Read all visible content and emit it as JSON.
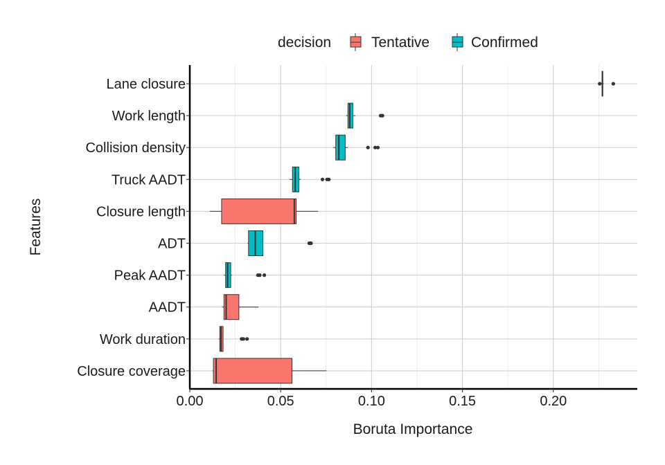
{
  "chart_data": {
    "type": "boxplot",
    "orientation": "horizontal",
    "xlabel": "Boruta Importance",
    "ylabel": "Features",
    "xlim": [
      0.0,
      0.245
    ],
    "x_ticks": [
      0.0,
      0.05,
      0.1,
      0.15,
      0.2
    ],
    "x_tick_labels": [
      "0.00",
      "0.05",
      "0.10",
      "0.15",
      "0.20"
    ],
    "grid": true,
    "legend": {
      "title": "decision",
      "position": "top",
      "entries": [
        {
          "label": "Tentative",
          "color": "#F8766D"
        },
        {
          "label": "Confirmed",
          "color": "#00BFC4"
        }
      ]
    },
    "categories": [
      "Lane closure",
      "Work length",
      "Collision density",
      "Truck AADT",
      "Closure length",
      "ADT",
      "Peak AADT",
      "AADT",
      "Work duration",
      "Closure coverage"
    ],
    "boxes": [
      {
        "feature": "Lane closure",
        "decision": "Confirmed",
        "whisker_low": 0.2263,
        "q1": 0.2268,
        "median": 0.227,
        "q3": 0.2272,
        "whisker_high": 0.2277,
        "outliers": [
          0.2255,
          0.233
        ]
      },
      {
        "feature": "Work length",
        "decision": "Confirmed",
        "whisker_low": 0.086,
        "q1": 0.087,
        "median": 0.088,
        "q3": 0.0897,
        "whisker_high": 0.091,
        "outliers": [
          0.105,
          0.106
        ]
      },
      {
        "feature": "Collision density",
        "decision": "Confirmed",
        "whisker_low": 0.079,
        "q1": 0.0803,
        "median": 0.082,
        "q3": 0.0855,
        "whisker_high": 0.087,
        "outliers": [
          0.098,
          0.102,
          0.1035
        ]
      },
      {
        "feature": "Truck AADT",
        "decision": "Confirmed",
        "whisker_low": 0.0548,
        "q1": 0.0565,
        "median": 0.058,
        "q3": 0.06,
        "whisker_high": 0.061,
        "outliers": [
          0.073,
          0.0755,
          0.0765
        ]
      },
      {
        "feature": "Closure length",
        "decision": "Tentative",
        "whisker_low": 0.011,
        "q1": 0.0175,
        "median": 0.0575,
        "q3": 0.0585,
        "whisker_high": 0.0705,
        "outliers": []
      },
      {
        "feature": "ADT",
        "decision": "Confirmed",
        "whisker_low": 0.0318,
        "q1": 0.0323,
        "median": 0.036,
        "q3": 0.0402,
        "whisker_high": 0.0402,
        "outliers": [
          0.0657,
          0.0663,
          0.0667
        ]
      },
      {
        "feature": "Peak AADT",
        "decision": "Confirmed",
        "whisker_low": 0.0188,
        "q1": 0.0197,
        "median": 0.0208,
        "q3": 0.0225,
        "whisker_high": 0.0232,
        "outliers": [
          0.0375,
          0.0385,
          0.041
        ]
      },
      {
        "feature": "AADT",
        "decision": "Tentative",
        "whisker_low": 0.0178,
        "q1": 0.0188,
        "median": 0.02,
        "q3": 0.027,
        "whisker_high": 0.0378,
        "outliers": []
      },
      {
        "feature": "Work duration",
        "decision": "Tentative",
        "whisker_low": 0.016,
        "q1": 0.0165,
        "median": 0.0172,
        "q3": 0.0183,
        "whisker_high": 0.0185,
        "outliers": [
          0.0285,
          0.0295,
          0.0315
        ]
      },
      {
        "feature": "Closure coverage",
        "decision": "Tentative",
        "whisker_low": 0.0125,
        "q1": 0.013,
        "median": 0.0145,
        "q3": 0.0562,
        "whisker_high": 0.0752,
        "outliers": []
      }
    ]
  }
}
